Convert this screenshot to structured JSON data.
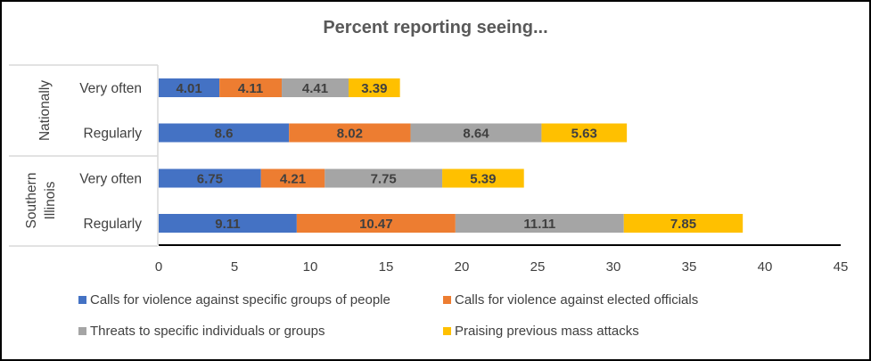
{
  "chart_data": {
    "type": "bar",
    "orientation": "horizontal",
    "stacked": true,
    "title": "Percent reporting seeing...",
    "xlabel": "",
    "ylabel": "",
    "xlim": [
      0,
      45
    ],
    "xticks": [
      0,
      5,
      10,
      15,
      20,
      25,
      30,
      35,
      40,
      45
    ],
    "groups": [
      {
        "name": "Nationally",
        "categories": [
          "Very often",
          "Regularly"
        ]
      },
      {
        "name": "Southern Illinois",
        "categories": [
          "Very often",
          "Regularly"
        ]
      }
    ],
    "categories": [
      "Nationally - Very often",
      "Nationally - Regularly",
      "Southern Illinois - Very often",
      "Southern Illinois - Regularly"
    ],
    "series": [
      {
        "name": "Calls for violence against specific groups of people",
        "color": "#4472C4",
        "values": [
          4.01,
          8.6,
          6.75,
          9.11
        ]
      },
      {
        "name": "Calls for violence against elected officials",
        "color": "#ED7D31",
        "values": [
          4.11,
          8.02,
          4.21,
          10.47
        ]
      },
      {
        "name": "Threats to specific individuals or groups",
        "color": "#A5A5A5",
        "values": [
          4.41,
          8.64,
          7.75,
          11.11
        ]
      },
      {
        "name": "Praising previous mass attacks",
        "color": "#FFC000",
        "values": [
          3.39,
          5.63,
          5.39,
          7.85
        ]
      }
    ],
    "legend_position": "bottom",
    "grid": false
  }
}
